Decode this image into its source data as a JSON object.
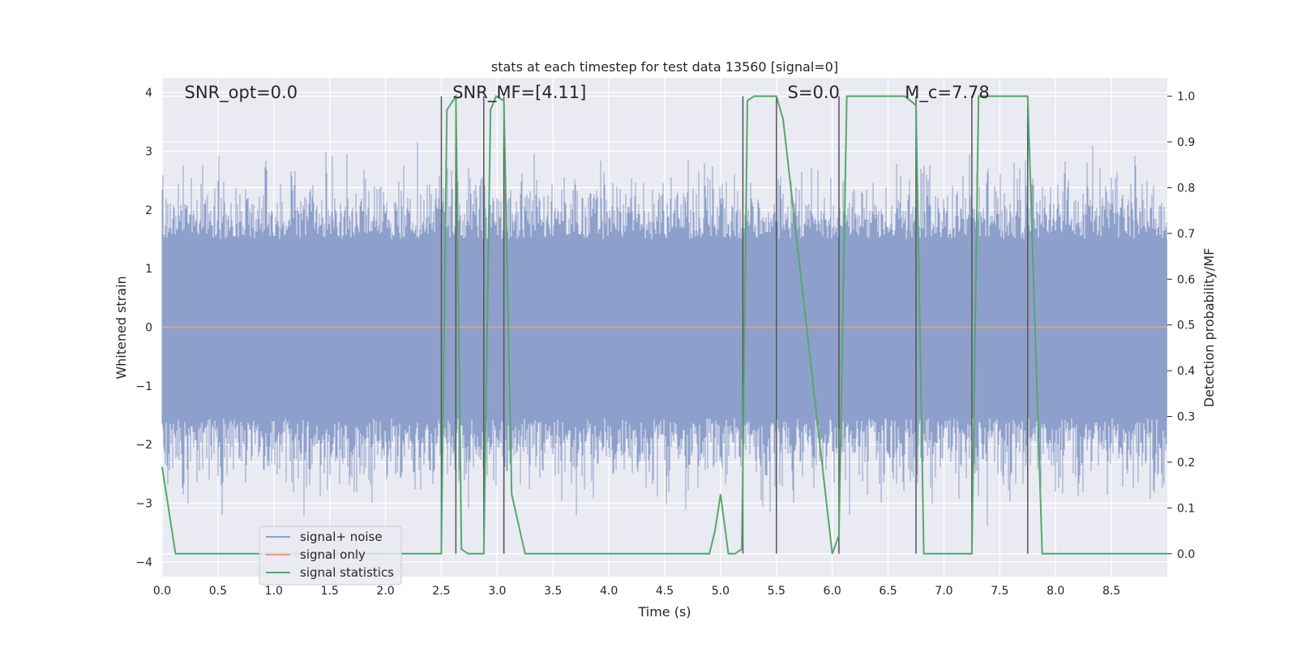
{
  "chart_data": {
    "type": "line",
    "title": "stats at each timestep for test data 13560 [signal=0]",
    "xlabel": "Time (s)",
    "ylabel_left": "Whitened strain",
    "ylabel_right": "Detection probability/MF",
    "xlim": [
      0,
      9.0
    ],
    "ylim_left": [
      -4.25,
      4.25
    ],
    "ylim_right": [
      -0.05,
      1.04
    ],
    "xticks": [
      0.0,
      0.5,
      1.0,
      1.5,
      2.0,
      2.5,
      3.0,
      3.5,
      4.0,
      4.5,
      5.0,
      5.5,
      6.0,
      6.5,
      7.0,
      7.5,
      8.0,
      8.5
    ],
    "xtick_labels": [
      "0.0",
      "0.5",
      "1.0",
      "1.5",
      "2.0",
      "2.5",
      "3.0",
      "3.5",
      "4.0",
      "4.5",
      "5.0",
      "5.5",
      "6.0",
      "6.5",
      "7.0",
      "7.5",
      "8.0",
      "8.5"
    ],
    "yticks_left": [
      4,
      3,
      2,
      1,
      0,
      -1,
      -2,
      -3,
      -4
    ],
    "yticks_left_labels": [
      "4",
      "3",
      "2",
      "1",
      "0",
      "−1",
      "−2",
      "−3",
      "−4"
    ],
    "yticks_right": [
      1.0,
      0.9,
      0.8,
      0.7,
      0.6,
      0.5,
      0.4,
      0.3,
      0.2,
      0.1,
      0.0
    ],
    "yticks_right_labels": [
      "1.0",
      "0.9",
      "0.8",
      "0.7",
      "0.6",
      "0.5",
      "0.4",
      "0.3",
      "0.2",
      "0.1",
      "0.0"
    ],
    "grid": true,
    "legend_position": "lower-left",
    "annotations": [
      {
        "text": "SNR_opt=0.0",
        "x": 0.2
      },
      {
        "text": "SNR_MF=[4.11]",
        "x": 2.6
      },
      {
        "text": "S=0.0",
        "x": 5.6
      },
      {
        "text": "M_c=7.78",
        "x": 6.65
      }
    ],
    "vlines": [
      2.5,
      2.63,
      2.88,
      3.06,
      5.2,
      5.5,
      6.06,
      6.75,
      7.25,
      7.75
    ],
    "series": [
      {
        "name": "signal+ noise",
        "color": "#8da0cb",
        "style": "noise",
        "upper_band": 1.5,
        "lower_band": -1.55,
        "peak_extremes": [
          3.6,
          -3.9
        ]
      },
      {
        "name": "signal only",
        "color": "#e8a07a",
        "value": 0.0
      },
      {
        "name": "signal statistics",
        "color": "#55a868",
        "axis": "right",
        "x": [
          0.0,
          0.12,
          0.25,
          2.45,
          2.5,
          2.55,
          2.63,
          2.68,
          2.74,
          2.83,
          2.88,
          2.94,
          2.99,
          3.06,
          3.13,
          3.25,
          4.9,
          4.95,
          5.0,
          5.07,
          5.13,
          5.19,
          5.24,
          5.3,
          5.5,
          5.56,
          6.0,
          6.06,
          6.13,
          6.65,
          6.75,
          6.82,
          7.0,
          7.25,
          7.31,
          7.75,
          7.88,
          9.0
        ],
        "y": [
          0.19,
          0.0,
          0.0,
          0.0,
          0.0,
          0.97,
          1.0,
          0.01,
          0.0,
          0.0,
          0.0,
          0.97,
          1.0,
          0.99,
          0.13,
          0.0,
          0.0,
          0.05,
          0.13,
          0.0,
          0.0,
          0.01,
          0.99,
          1.0,
          1.0,
          0.95,
          0.0,
          0.04,
          1.0,
          1.0,
          0.98,
          0.0,
          0.0,
          0.0,
          1.0,
          1.0,
          0.0,
          0.0
        ]
      }
    ]
  }
}
